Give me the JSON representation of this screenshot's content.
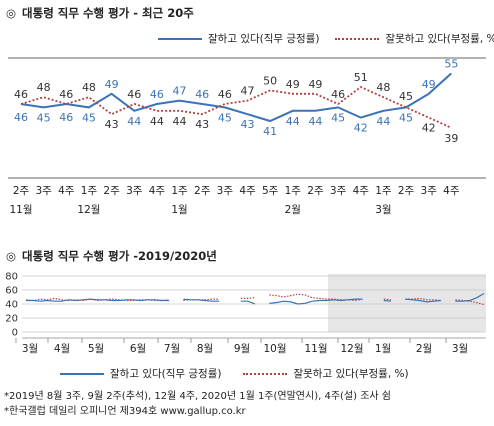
{
  "chart_data": [
    {
      "type": "line",
      "title": "대통령 직무 수행 평가 - 최근 20주",
      "legend": {
        "placement": "top-right"
      },
      "categories": [
        "2주",
        "3주",
        "4주",
        "1주",
        "2주",
        "3주",
        "4주",
        "1주",
        "2주",
        "3주",
        "4주",
        "5주",
        "1주",
        "2주",
        "3주",
        "4주",
        "1주",
        "2주",
        "3주",
        "4주"
      ],
      "month_labels": [
        {
          "label": "11월",
          "index": 0
        },
        {
          "label": "12월",
          "index": 3
        },
        {
          "label": "1월",
          "index": 7
        },
        {
          "label": "2월",
          "index": 12
        },
        {
          "label": "3월",
          "index": 16
        }
      ],
      "series": [
        {
          "name": "잘하고 있다(직무 긍정률)",
          "color": "#3a73b8",
          "style": "solid",
          "values": [
            46,
            45,
            46,
            45,
            49,
            44,
            46,
            47,
            46,
            45,
            43,
            41,
            44,
            44,
            45,
            42,
            44,
            45,
            49,
            55
          ]
        },
        {
          "name": "잘못하고 있다(부정률, %)",
          "color": "#b0413e",
          "style": "dotted",
          "values": [
            46,
            48,
            46,
            48,
            43,
            46,
            44,
            44,
            43,
            46,
            47,
            50,
            49,
            49,
            46,
            51,
            48,
            45,
            42,
            39
          ]
        }
      ]
    },
    {
      "type": "line",
      "title": "대통령 직무 수행 평가 -2019/2020년",
      "yticks": [
        0,
        20,
        40,
        60,
        80
      ],
      "ylim": [
        0,
        80
      ],
      "grid": true,
      "months": [
        "3월",
        "4월",
        "5월",
        "6월",
        "7월",
        "8월",
        "9월",
        "10월",
        "11월",
        "12월",
        "1월",
        "2월",
        "3월"
      ],
      "highlight_region": "recent 20 weeks",
      "series": [
        {
          "name": "잘하고 있다(직무 긍정률)",
          "color": "#3a73b8",
          "style": "solid",
          "values": [
            45,
            45,
            44,
            45,
            44,
            44,
            46,
            45,
            46,
            47,
            46,
            46,
            45,
            45,
            46,
            46,
            45,
            46,
            46,
            45,
            45,
            null,
            47,
            46,
            46,
            45,
            44,
            44,
            null,
            null,
            44,
            44,
            40,
            null,
            41,
            42,
            44,
            43,
            40,
            41,
            44,
            45,
            45,
            46,
            45,
            46,
            47,
            47,
            null,
            null,
            45,
            44,
            null,
            47,
            46,
            45,
            43,
            44,
            45,
            null,
            44,
            44,
            45,
            49,
            55
          ]
        },
        {
          "name": "잘못하고 있다(부정률, %)",
          "color": "#b0413e",
          "style": "dotted",
          "values": [
            46,
            45,
            47,
            46,
            48,
            46,
            45,
            46,
            45,
            47,
            45,
            46,
            47,
            46,
            45,
            45,
            46,
            46,
            45,
            45,
            46,
            null,
            45,
            46,
            46,
            46,
            47,
            47,
            null,
            null,
            48,
            48,
            49,
            null,
            53,
            52,
            50,
            52,
            54,
            53,
            49,
            48,
            47,
            47,
            46,
            46,
            45,
            47,
            null,
            null,
            47,
            46,
            null,
            47,
            47,
            48,
            46,
            46,
            45,
            null,
            46,
            45,
            44,
            42,
            39
          ]
        }
      ]
    }
  ],
  "legend2": {
    "pos_label": "잘하고 있다(직무 긍정률)",
    "neg_label": "잘못하고 있다(부정률, %)"
  },
  "notes": [
    "*2019년 8월 3주, 9월 2주(추석), 12월 4주, 2020년 1월 1주(연말연시), 4주(설) 조사 쉼",
    "*한국갤럽 데일리 오피니언 제394호 www.gallup.co.kr"
  ]
}
